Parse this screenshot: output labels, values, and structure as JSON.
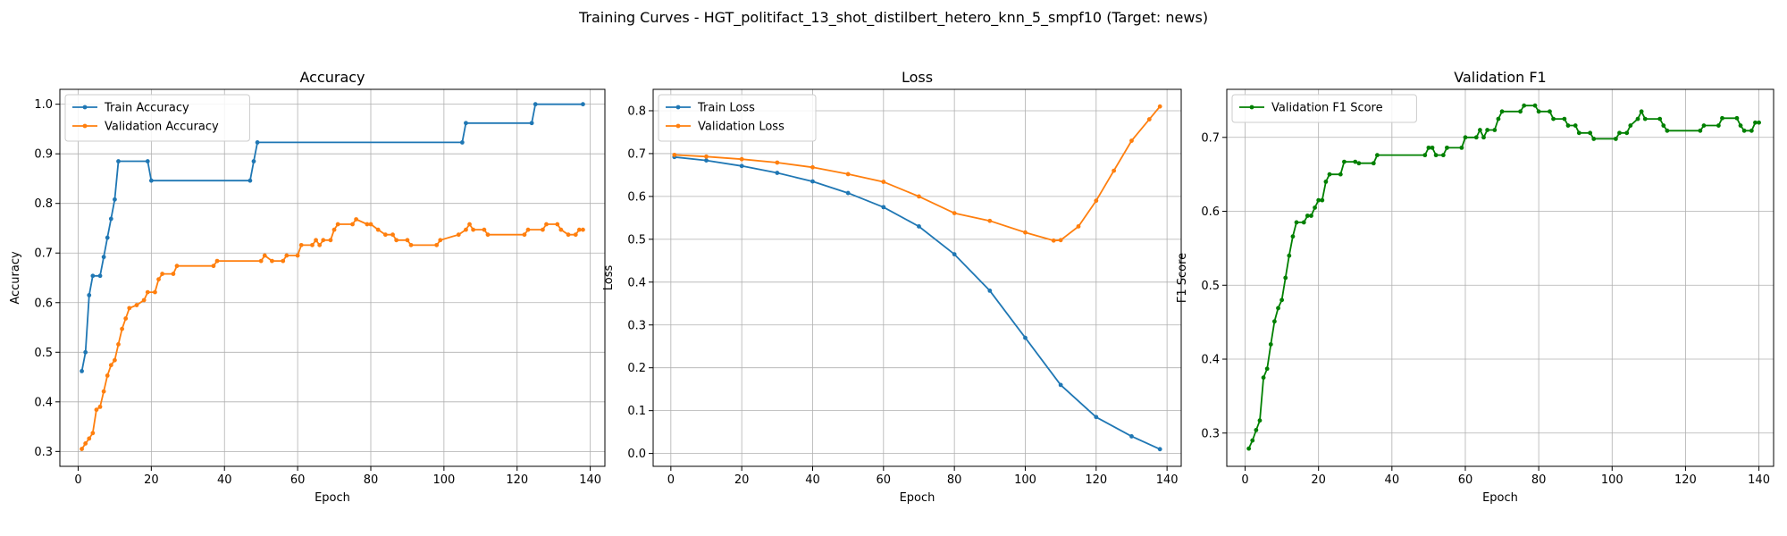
{
  "figure": {
    "suptitle": "Training Curves - HGT_politifact_13_shot_distilbert_hetero_knn_5_smpf10 (Target: news)"
  },
  "chart_data": [
    {
      "type": "line",
      "title": "Accuracy",
      "xlabel": "Epoch",
      "ylabel": "Accuracy",
      "xlim": [
        -5,
        144
      ],
      "ylim": [
        0.27,
        1.03
      ],
      "xticks": [
        0,
        20,
        40,
        60,
        80,
        100,
        120,
        140
      ],
      "yticks": [
        0.3,
        0.4,
        0.5,
        0.6,
        0.7,
        0.8,
        0.9,
        1.0
      ],
      "grid": true,
      "legend_position": "upper-left",
      "series": [
        {
          "name": "Train Accuracy",
          "color": "#1f77b4",
          "points": [
            [
              1,
              0.462
            ],
            [
              2,
              0.5
            ],
            [
              3,
              0.615
            ],
            [
              4,
              0.654
            ],
            [
              6,
              0.654
            ],
            [
              7,
              0.692
            ],
            [
              8,
              0.731
            ],
            [
              9,
              0.769
            ],
            [
              10,
              0.808
            ],
            [
              11,
              0.885
            ],
            [
              19,
              0.885
            ],
            [
              20,
              0.846
            ],
            [
              47,
              0.846
            ],
            [
              48,
              0.885
            ],
            [
              49,
              0.923
            ],
            [
              105,
              0.923
            ],
            [
              106,
              0.962
            ],
            [
              124,
              0.962
            ],
            [
              125,
              1.0
            ],
            [
              138,
              1.0
            ]
          ]
        },
        {
          "name": "Validation Accuracy",
          "color": "#ff7f0e",
          "points": [
            [
              1,
              0.305
            ],
            [
              2,
              0.316
            ],
            [
              3,
              0.326
            ],
            [
              4,
              0.337
            ],
            [
              5,
              0.384
            ],
            [
              6,
              0.39
            ],
            [
              7,
              0.421
            ],
            [
              8,
              0.453
            ],
            [
              9,
              0.474
            ],
            [
              10,
              0.484
            ],
            [
              11,
              0.516
            ],
            [
              12,
              0.547
            ],
            [
              13,
              0.568
            ],
            [
              14,
              0.589
            ],
            [
              16,
              0.595
            ],
            [
              18,
              0.605
            ],
            [
              19,
              0.621
            ],
            [
              21,
              0.621
            ],
            [
              22,
              0.647
            ],
            [
              23,
              0.658
            ],
            [
              26,
              0.658
            ],
            [
              27,
              0.674
            ],
            [
              37,
              0.674
            ],
            [
              38,
              0.684
            ],
            [
              50,
              0.684
            ],
            [
              51,
              0.695
            ],
            [
              53,
              0.684
            ],
            [
              56,
              0.684
            ],
            [
              57,
              0.695
            ],
            [
              60,
              0.695
            ],
            [
              61,
              0.716
            ],
            [
              64,
              0.716
            ],
            [
              65,
              0.726
            ],
            [
              66,
              0.716
            ],
            [
              67,
              0.726
            ],
            [
              69,
              0.726
            ],
            [
              70,
              0.747
            ],
            [
              71,
              0.758
            ],
            [
              75,
              0.758
            ],
            [
              76,
              0.768
            ],
            [
              79,
              0.758
            ],
            [
              80,
              0.758
            ],
            [
              82,
              0.747
            ],
            [
              84,
              0.737
            ],
            [
              86,
              0.737
            ],
            [
              87,
              0.726
            ],
            [
              90,
              0.726
            ],
            [
              91,
              0.716
            ],
            [
              98,
              0.716
            ],
            [
              99,
              0.726
            ],
            [
              104,
              0.737
            ],
            [
              106,
              0.747
            ],
            [
              107,
              0.758
            ],
            [
              108,
              0.747
            ],
            [
              111,
              0.747
            ],
            [
              112,
              0.737
            ],
            [
              122,
              0.737
            ],
            [
              123,
              0.747
            ],
            [
              127,
              0.747
            ],
            [
              128,
              0.758
            ],
            [
              131,
              0.758
            ],
            [
              132,
              0.747
            ],
            [
              134,
              0.737
            ],
            [
              136,
              0.737
            ],
            [
              137,
              0.747
            ],
            [
              138,
              0.747
            ]
          ]
        }
      ]
    },
    {
      "type": "line",
      "title": "Loss",
      "xlabel": "Epoch",
      "ylabel": "Loss",
      "xlim": [
        -5,
        144
      ],
      "ylim": [
        -0.03,
        0.85
      ],
      "xticks": [
        0,
        20,
        40,
        60,
        80,
        100,
        120,
        140
      ],
      "yticks": [
        0.0,
        0.1,
        0.2,
        0.3,
        0.4,
        0.5,
        0.6,
        0.7,
        0.8
      ],
      "grid": true,
      "legend_position": "upper-left",
      "series": [
        {
          "name": "Train Loss",
          "color": "#1f77b4",
          "points": [
            [
              1,
              0.692
            ],
            [
              10,
              0.684
            ],
            [
              20,
              0.671
            ],
            [
              30,
              0.655
            ],
            [
              40,
              0.635
            ],
            [
              50,
              0.608
            ],
            [
              60,
              0.575
            ],
            [
              70,
              0.53
            ],
            [
              80,
              0.465
            ],
            [
              90,
              0.38
            ],
            [
              100,
              0.27
            ],
            [
              110,
              0.16
            ],
            [
              120,
              0.085
            ],
            [
              130,
              0.04
            ],
            [
              138,
              0.01
            ]
          ]
        },
        {
          "name": "Validation Loss",
          "color": "#ff7f0e",
          "points": [
            [
              1,
              0.697
            ],
            [
              10,
              0.693
            ],
            [
              20,
              0.687
            ],
            [
              30,
              0.679
            ],
            [
              40,
              0.668
            ],
            [
              50,
              0.652
            ],
            [
              60,
              0.634
            ],
            [
              70,
              0.6
            ],
            [
              80,
              0.561
            ],
            [
              90,
              0.543
            ],
            [
              100,
              0.516
            ],
            [
              108,
              0.497
            ],
            [
              110,
              0.498
            ],
            [
              115,
              0.53
            ],
            [
              120,
              0.59
            ],
            [
              125,
              0.66
            ],
            [
              130,
              0.73
            ],
            [
              135,
              0.78
            ],
            [
              138,
              0.81
            ]
          ]
        }
      ]
    },
    {
      "type": "line",
      "title": "Validation F1",
      "xlabel": "Epoch",
      "ylabel": "F1 Score",
      "xlim": [
        -5,
        144
      ],
      "ylim": [
        0.255,
        0.765
      ],
      "xticks": [
        0,
        20,
        40,
        60,
        80,
        100,
        120,
        140
      ],
      "yticks": [
        0.3,
        0.4,
        0.5,
        0.6,
        0.7
      ],
      "grid": true,
      "legend_position": "upper-left",
      "series": [
        {
          "name": "Validation F1 Score",
          "color": "#008000",
          "points": [
            [
              1,
              0.279
            ],
            [
              2,
              0.29
            ],
            [
              3,
              0.304
            ],
            [
              4,
              0.317
            ],
            [
              5,
              0.375
            ],
            [
              6,
              0.387
            ],
            [
              7,
              0.42
            ],
            [
              8,
              0.451
            ],
            [
              9,
              0.469
            ],
            [
              10,
              0.48
            ],
            [
              11,
              0.51
            ],
            [
              12,
              0.54
            ],
            [
              13,
              0.566
            ],
            [
              14,
              0.585
            ],
            [
              16,
              0.585
            ],
            [
              17,
              0.594
            ],
            [
              18,
              0.594
            ],
            [
              19,
              0.605
            ],
            [
              20,
              0.615
            ],
            [
              21,
              0.615
            ],
            [
              22,
              0.64
            ],
            [
              23,
              0.65
            ],
            [
              26,
              0.65
            ],
            [
              27,
              0.667
            ],
            [
              30,
              0.667
            ],
            [
              31,
              0.665
            ],
            [
              35,
              0.665
            ],
            [
              36,
              0.676
            ],
            [
              49,
              0.676
            ],
            [
              50,
              0.686
            ],
            [
              51,
              0.686
            ],
            [
              52,
              0.676
            ],
            [
              54,
              0.676
            ],
            [
              55,
              0.686
            ],
            [
              59,
              0.686
            ],
            [
              60,
              0.7
            ],
            [
              63,
              0.7
            ],
            [
              64,
              0.71
            ],
            [
              65,
              0.7
            ],
            [
              66,
              0.71
            ],
            [
              68,
              0.71
            ],
            [
              69,
              0.725
            ],
            [
              70,
              0.735
            ],
            [
              75,
              0.735
            ],
            [
              76,
              0.743
            ],
            [
              79,
              0.743
            ],
            [
              80,
              0.735
            ],
            [
              83,
              0.735
            ],
            [
              84,
              0.725
            ],
            [
              87,
              0.725
            ],
            [
              88,
              0.716
            ],
            [
              90,
              0.716
            ],
            [
              91,
              0.706
            ],
            [
              94,
              0.706
            ],
            [
              95,
              0.698
            ],
            [
              101,
              0.698
            ],
            [
              102,
              0.706
            ],
            [
              104,
              0.706
            ],
            [
              105,
              0.716
            ],
            [
              107,
              0.725
            ],
            [
              108,
              0.735
            ],
            [
              109,
              0.725
            ],
            [
              113,
              0.725
            ],
            [
              114,
              0.716
            ],
            [
              115,
              0.709
            ],
            [
              124,
              0.709
            ],
            [
              125,
              0.716
            ],
            [
              129,
              0.716
            ],
            [
              130,
              0.726
            ],
            [
              134,
              0.726
            ],
            [
              135,
              0.716
            ],
            [
              136,
              0.709
            ],
            [
              138,
              0.709
            ],
            [
              139,
              0.72
            ],
            [
              140,
              0.72
            ]
          ]
        }
      ]
    }
  ]
}
